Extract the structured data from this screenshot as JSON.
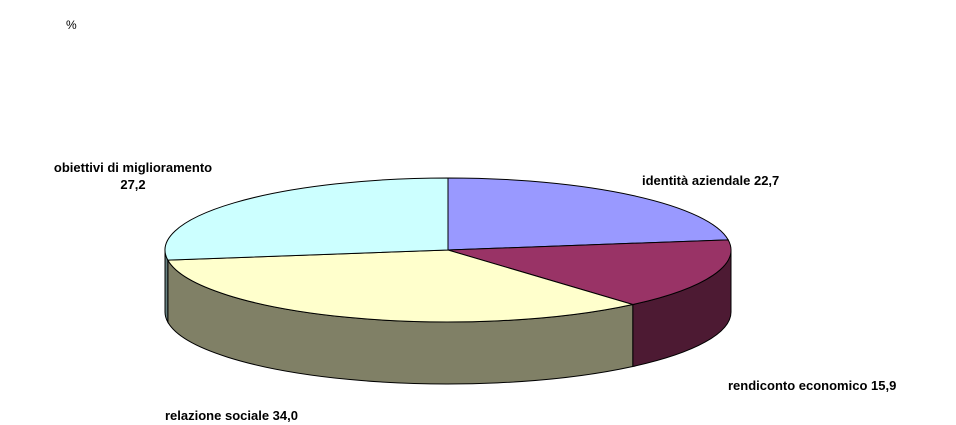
{
  "chart_data": {
    "type": "pie",
    "style": "3d",
    "unit": "%",
    "slices": [
      {
        "label": "identità aziendale",
        "value": 22.7,
        "value_text": "22,7",
        "color": "#9999FF",
        "side_color": "#5C5CA8"
      },
      {
        "label": "rendiconto economico",
        "value": 15.9,
        "value_text": "15,9",
        "color": "#993366",
        "side_color": "#4D1A33"
      },
      {
        "label": "relazione sociale",
        "value": 34.0,
        "value_text": "34,0",
        "color": "#FFFFCC",
        "side_color": "#808066"
      },
      {
        "label": "obiettivi di miglioramento",
        "value": 27.2,
        "value_text": "27,2",
        "color": "#CCFFFF",
        "side_color": "#668080"
      }
    ],
    "outline_color": "#000000",
    "background": "#FFFFFF"
  }
}
